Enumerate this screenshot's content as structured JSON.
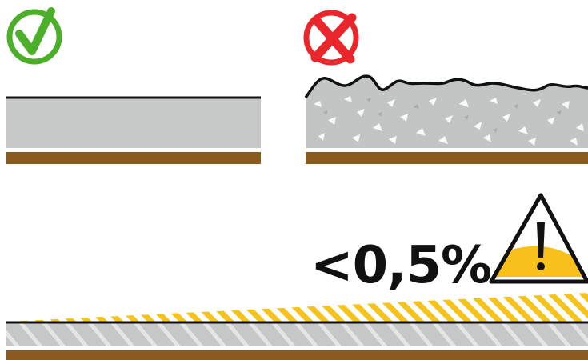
{
  "labels": {
    "slope_limit": "<0,5%"
  },
  "icons": {
    "correct": "check-circle-icon",
    "incorrect": "cross-circle-icon",
    "warning": "warning-triangle-icon"
  },
  "colors": {
    "check_green": "#4caf2a",
    "cross_red": "#e8262b",
    "concrete_gray": "#c6c8c8",
    "substrate_brown": "#8b5a1e",
    "warning_yellow": "#f8c01a",
    "hatch_yellow": "#f6c21c",
    "outline": "#111111"
  }
}
